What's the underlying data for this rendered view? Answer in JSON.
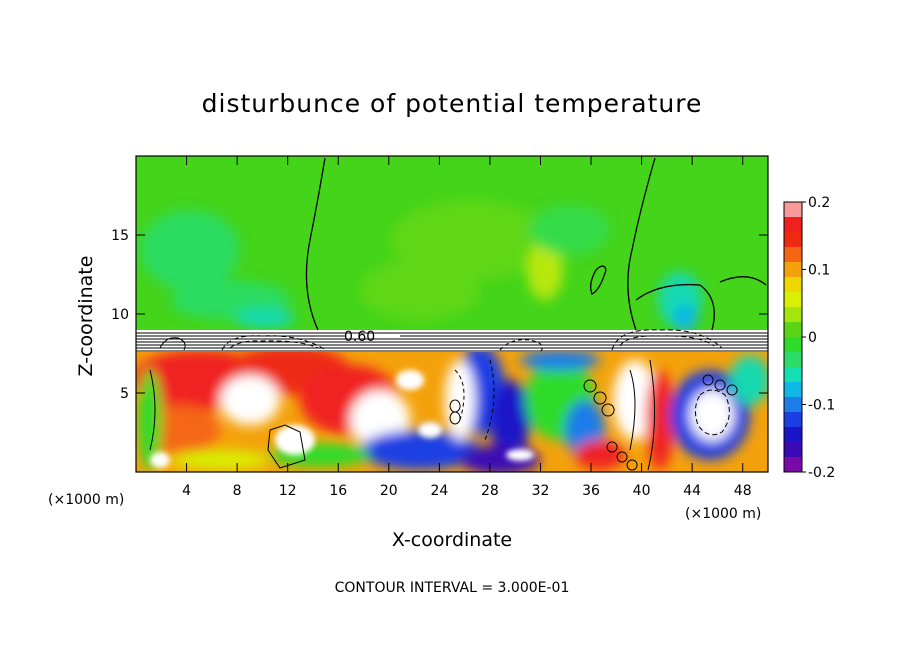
{
  "chart_data": {
    "type": "heatmap",
    "title": "disturbunce of potential temperature",
    "xlabel": "X-coordinate",
    "ylabel": "Z-coordinate",
    "x_unit": "(×1000 m)",
    "xlim": [
      0,
      50
    ],
    "ylim": [
      0,
      20
    ],
    "x_ticks": [
      "4",
      "8",
      "12",
      "16",
      "20",
      "24",
      "28",
      "32",
      "36",
      "40",
      "44",
      "48"
    ],
    "y_ticks": [
      "5",
      "10",
      "15"
    ],
    "colorbar": {
      "range": [
        -0.2,
        0.2
      ],
      "tick_labels": [
        "0.2",
        "0.1",
        "0",
        "-0.1",
        "-0.2"
      ],
      "colors": [
        "#f79a9a",
        "#f02020",
        "#ee2a12",
        "#f56614",
        "#f4a20b",
        "#efd600",
        "#d9ef06",
        "#a4e50e",
        "#5ad414",
        "#2fdc2c",
        "#2bdc6a",
        "#14dfb2",
        "#10b8e6",
        "#1c7ce8",
        "#1c3fe4",
        "#1a16c8",
        "#3a0ab4",
        "#7a0aa8"
      ]
    },
    "contour_label": "0.60",
    "contour_interval_text": "CONTOUR INTERVAL = 3.000E-01"
  }
}
